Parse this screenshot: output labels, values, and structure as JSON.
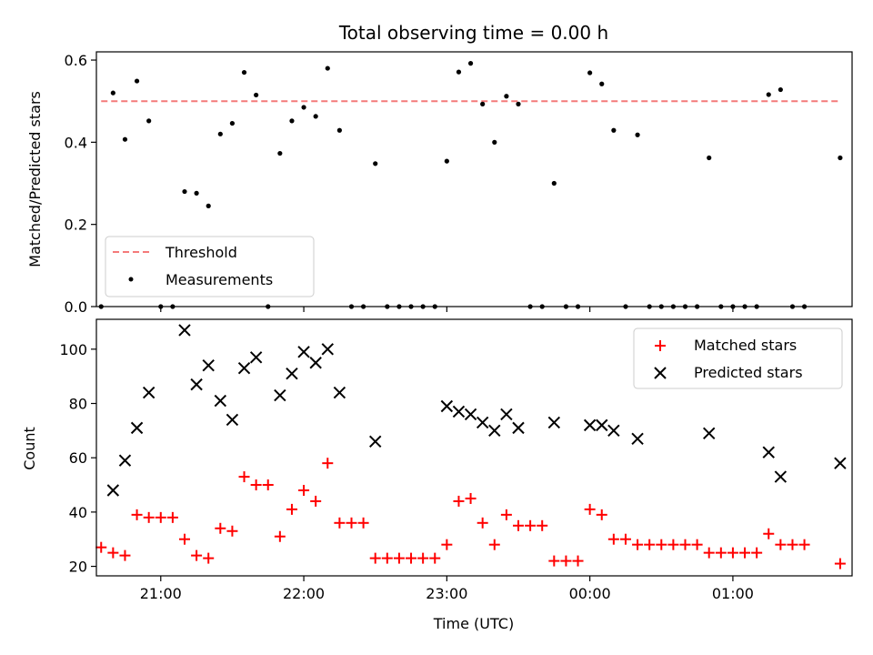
{
  "chart_data": [
    {
      "type": "scatter",
      "title": "Total observing time = 0.00 h",
      "xlabel": "",
      "ylabel": "Matched/Predicted stars",
      "ylim": [
        0,
        0.62
      ],
      "yticks": [
        0,
        0.2,
        0.4,
        0.6
      ],
      "ytick_labels": [
        "0.0",
        "0.2",
        "0.4",
        "0.6"
      ],
      "legend_position": "lower-left",
      "threshold": {
        "name": "Threshold",
        "value": 0.5,
        "x_start": "20:35",
        "x_end": "01:45",
        "color": "#f47a7a"
      },
      "series": [
        {
          "name": "Measurements",
          "color": "#000000",
          "points": [
            {
              "x": "20:35",
              "y": 0.0
            },
            {
              "x": "20:40",
              "y": 0.52
            },
            {
              "x": "20:45",
              "y": 0.407
            },
            {
              "x": "20:50",
              "y": 0.549
            },
            {
              "x": "20:55",
              "y": 0.452
            },
            {
              "x": "21:00",
              "y": 0.0
            },
            {
              "x": "21:05",
              "y": 0.0
            },
            {
              "x": "21:10",
              "y": 0.28
            },
            {
              "x": "21:15",
              "y": 0.276
            },
            {
              "x": "21:20",
              "y": 0.245
            },
            {
              "x": "21:25",
              "y": 0.42
            },
            {
              "x": "21:30",
              "y": 0.446
            },
            {
              "x": "21:35",
              "y": 0.57
            },
            {
              "x": "21:40",
              "y": 0.515
            },
            {
              "x": "21:45",
              "y": 0.0
            },
            {
              "x": "21:50",
              "y": 0.373
            },
            {
              "x": "21:55",
              "y": 0.452
            },
            {
              "x": "22:00",
              "y": 0.485
            },
            {
              "x": "22:05",
              "y": 0.463
            },
            {
              "x": "22:10",
              "y": 0.58
            },
            {
              "x": "22:15",
              "y": 0.429
            },
            {
              "x": "22:20",
              "y": 0.0
            },
            {
              "x": "22:25",
              "y": 0.0
            },
            {
              "x": "22:30",
              "y": 0.348
            },
            {
              "x": "22:35",
              "y": 0.0
            },
            {
              "x": "22:40",
              "y": 0.0
            },
            {
              "x": "22:45",
              "y": 0.0
            },
            {
              "x": "22:50",
              "y": 0.0
            },
            {
              "x": "22:55",
              "y": 0.0
            },
            {
              "x": "23:00",
              "y": 0.354
            },
            {
              "x": "23:05",
              "y": 0.571
            },
            {
              "x": "23:10",
              "y": 0.592
            },
            {
              "x": "23:15",
              "y": 0.493
            },
            {
              "x": "23:20",
              "y": 0.4
            },
            {
              "x": "23:25",
              "y": 0.512
            },
            {
              "x": "23:30",
              "y": 0.493
            },
            {
              "x": "23:35",
              "y": 0.0
            },
            {
              "x": "23:40",
              "y": 0.0
            },
            {
              "x": "23:45",
              "y": 0.3
            },
            {
              "x": "23:50",
              "y": 0.0
            },
            {
              "x": "23:55",
              "y": 0.0
            },
            {
              "x": "00:00",
              "y": 0.569
            },
            {
              "x": "00:05",
              "y": 0.542
            },
            {
              "x": "00:10",
              "y": 0.429
            },
            {
              "x": "00:15",
              "y": 0.0
            },
            {
              "x": "00:20",
              "y": 0.418
            },
            {
              "x": "00:25",
              "y": 0.0
            },
            {
              "x": "00:30",
              "y": 0.0
            },
            {
              "x": "00:35",
              "y": 0.0
            },
            {
              "x": "00:40",
              "y": 0.0
            },
            {
              "x": "00:45",
              "y": 0.0
            },
            {
              "x": "00:50",
              "y": 0.362
            },
            {
              "x": "00:55",
              "y": 0.0
            },
            {
              "x": "01:00",
              "y": 0.0
            },
            {
              "x": "01:05",
              "y": 0.0
            },
            {
              "x": "01:10",
              "y": 0.0
            },
            {
              "x": "01:15",
              "y": 0.516
            },
            {
              "x": "01:20",
              "y": 0.528
            },
            {
              "x": "01:25",
              "y": 0.0
            },
            {
              "x": "01:30",
              "y": 0.0
            },
            {
              "x": "01:45",
              "y": 0.362
            }
          ]
        }
      ]
    },
    {
      "type": "scatter",
      "title": "",
      "xlabel": "Time (UTC)",
      "ylabel": "Count",
      "ylim": [
        16.5,
        111
      ],
      "yticks": [
        20,
        40,
        60,
        80,
        100
      ],
      "ytick_labels": [
        "20",
        "40",
        "60",
        "80",
        "100"
      ],
      "xlim": [
        "20:33",
        "01:50"
      ],
      "xticks": [
        "21:00",
        "22:00",
        "23:00",
        "00:00",
        "01:00"
      ],
      "legend_position": "upper-right",
      "series": [
        {
          "name": "Matched stars",
          "marker": "plus",
          "color": "#ff0000",
          "points": [
            {
              "x": "20:35",
              "y": 27
            },
            {
              "x": "20:40",
              "y": 25
            },
            {
              "x": "20:45",
              "y": 24
            },
            {
              "x": "20:50",
              "y": 39
            },
            {
              "x": "20:55",
              "y": 38
            },
            {
              "x": "21:00",
              "y": 38
            },
            {
              "x": "21:05",
              "y": 38
            },
            {
              "x": "21:10",
              "y": 30
            },
            {
              "x": "21:15",
              "y": 24
            },
            {
              "x": "21:20",
              "y": 23
            },
            {
              "x": "21:25",
              "y": 34
            },
            {
              "x": "21:30",
              "y": 33
            },
            {
              "x": "21:35",
              "y": 53
            },
            {
              "x": "21:40",
              "y": 50
            },
            {
              "x": "21:45",
              "y": 50
            },
            {
              "x": "21:50",
              "y": 31
            },
            {
              "x": "21:55",
              "y": 41
            },
            {
              "x": "22:00",
              "y": 48
            },
            {
              "x": "22:05",
              "y": 44
            },
            {
              "x": "22:10",
              "y": 58
            },
            {
              "x": "22:15",
              "y": 36
            },
            {
              "x": "22:20",
              "y": 36
            },
            {
              "x": "22:25",
              "y": 36
            },
            {
              "x": "22:30",
              "y": 23
            },
            {
              "x": "22:35",
              "y": 23
            },
            {
              "x": "22:40",
              "y": 23
            },
            {
              "x": "22:45",
              "y": 23
            },
            {
              "x": "22:50",
              "y": 23
            },
            {
              "x": "22:55",
              "y": 23
            },
            {
              "x": "23:00",
              "y": 28
            },
            {
              "x": "23:05",
              "y": 44
            },
            {
              "x": "23:10",
              "y": 45
            },
            {
              "x": "23:15",
              "y": 36
            },
            {
              "x": "23:20",
              "y": 28
            },
            {
              "x": "23:25",
              "y": 39
            },
            {
              "x": "23:30",
              "y": 35
            },
            {
              "x": "23:35",
              "y": 35
            },
            {
              "x": "23:40",
              "y": 35
            },
            {
              "x": "23:45",
              "y": 22
            },
            {
              "x": "23:50",
              "y": 22
            },
            {
              "x": "23:55",
              "y": 22
            },
            {
              "x": "00:00",
              "y": 41
            },
            {
              "x": "00:05",
              "y": 39
            },
            {
              "x": "00:10",
              "y": 30
            },
            {
              "x": "00:15",
              "y": 30
            },
            {
              "x": "00:20",
              "y": 28
            },
            {
              "x": "00:25",
              "y": 28
            },
            {
              "x": "00:30",
              "y": 28
            },
            {
              "x": "00:35",
              "y": 28
            },
            {
              "x": "00:40",
              "y": 28
            },
            {
              "x": "00:45",
              "y": 28
            },
            {
              "x": "00:50",
              "y": 25
            },
            {
              "x": "00:55",
              "y": 25
            },
            {
              "x": "01:00",
              "y": 25
            },
            {
              "x": "01:05",
              "y": 25
            },
            {
              "x": "01:10",
              "y": 25
            },
            {
              "x": "01:15",
              "y": 32
            },
            {
              "x": "01:20",
              "y": 28
            },
            {
              "x": "01:25",
              "y": 28
            },
            {
              "x": "01:30",
              "y": 28
            },
            {
              "x": "01:45",
              "y": 21
            }
          ]
        },
        {
          "name": "Predicted stars",
          "marker": "x",
          "color": "#000000",
          "points": [
            {
              "x": "20:40",
              "y": 48
            },
            {
              "x": "20:45",
              "y": 59
            },
            {
              "x": "20:50",
              "y": 71
            },
            {
              "x": "20:55",
              "y": 84
            },
            {
              "x": "21:10",
              "y": 107
            },
            {
              "x": "21:15",
              "y": 87
            },
            {
              "x": "21:20",
              "y": 94
            },
            {
              "x": "21:25",
              "y": 81
            },
            {
              "x": "21:30",
              "y": 74
            },
            {
              "x": "21:35",
              "y": 93
            },
            {
              "x": "21:40",
              "y": 97
            },
            {
              "x": "21:50",
              "y": 83
            },
            {
              "x": "21:55",
              "y": 91
            },
            {
              "x": "22:00",
              "y": 99
            },
            {
              "x": "22:05",
              "y": 95
            },
            {
              "x": "22:10",
              "y": 100
            },
            {
              "x": "22:15",
              "y": 84
            },
            {
              "x": "22:30",
              "y": 66
            },
            {
              "x": "23:00",
              "y": 79
            },
            {
              "x": "23:05",
              "y": 77
            },
            {
              "x": "23:10",
              "y": 76
            },
            {
              "x": "23:15",
              "y": 73
            },
            {
              "x": "23:20",
              "y": 70
            },
            {
              "x": "23:25",
              "y": 76
            },
            {
              "x": "23:30",
              "y": 71
            },
            {
              "x": "23:45",
              "y": 73
            },
            {
              "x": "00:00",
              "y": 72
            },
            {
              "x": "00:05",
              "y": 72
            },
            {
              "x": "00:10",
              "y": 70
            },
            {
              "x": "00:20",
              "y": 67
            },
            {
              "x": "00:50",
              "y": 69
            },
            {
              "x": "01:15",
              "y": 62
            },
            {
              "x": "01:20",
              "y": 53
            },
            {
              "x": "01:45",
              "y": 58
            }
          ]
        }
      ]
    }
  ]
}
